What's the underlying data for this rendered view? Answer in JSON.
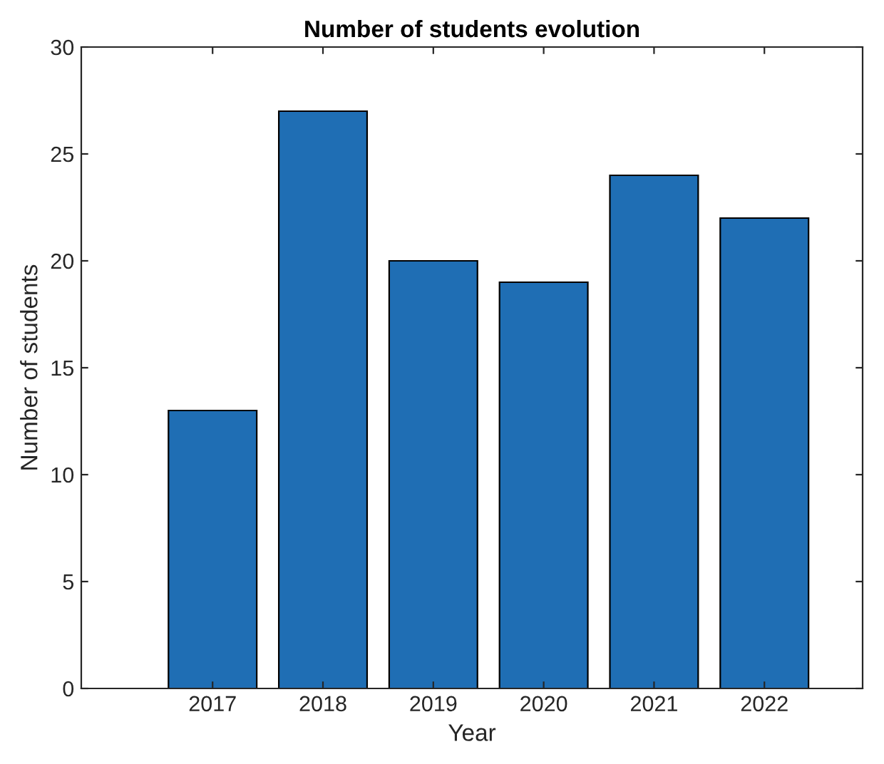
{
  "chart_data": {
    "type": "bar",
    "title": "Number of students evolution",
    "xlabel": "Year",
    "ylabel": "Number of students",
    "categories": [
      "2017",
      "2018",
      "2019",
      "2020",
      "2021",
      "2022"
    ],
    "values": [
      13,
      27,
      20,
      19,
      24,
      22
    ],
    "color": "#1f6eb4",
    "ylim": [
      0,
      30
    ],
    "yticks": [
      0,
      5,
      10,
      15,
      20,
      25,
      30
    ],
    "grid": false
  }
}
